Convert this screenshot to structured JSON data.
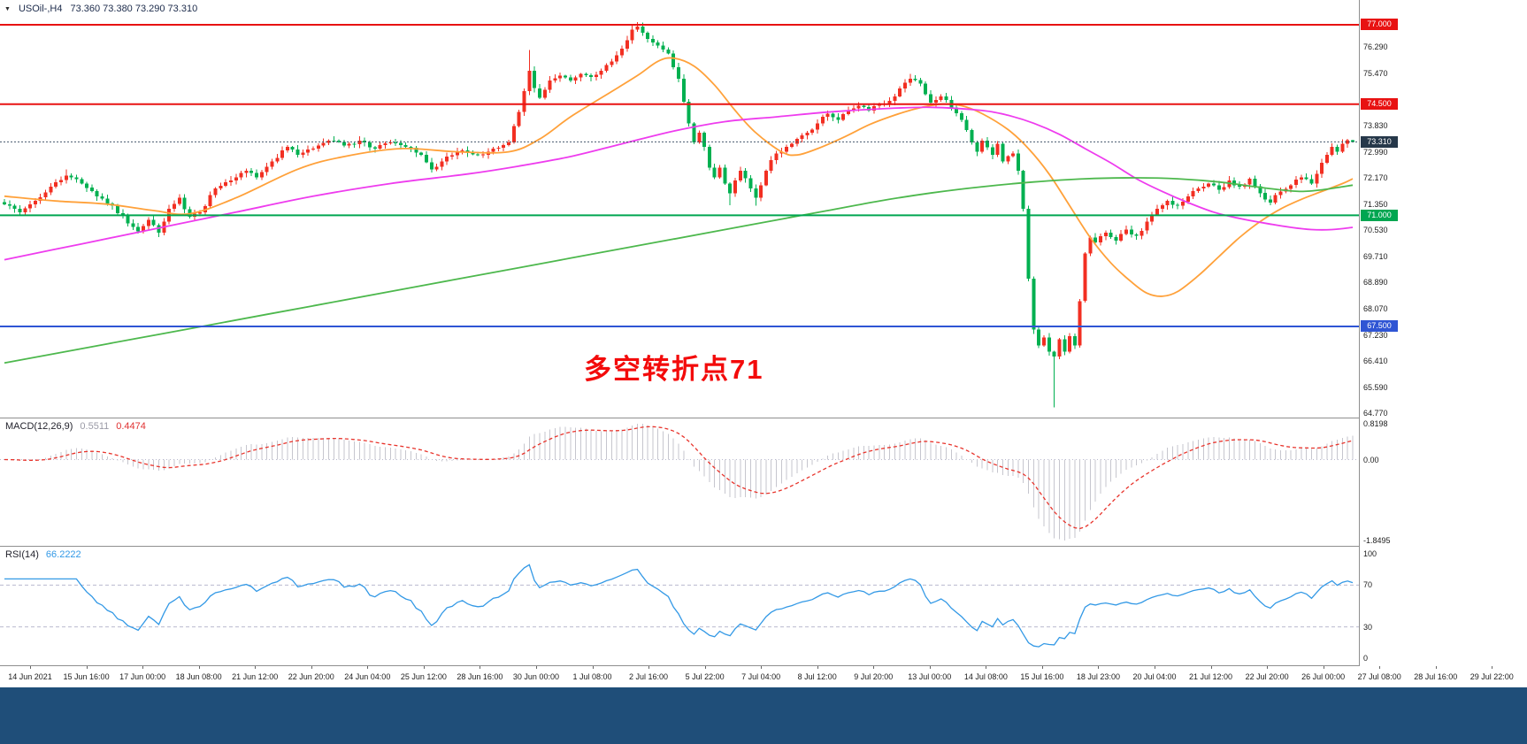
{
  "header": {
    "symbol": "USOil-,H4",
    "ohlc": "73.360 73.380 73.290 73.310"
  },
  "annotation": {
    "text": "多空转折点71"
  },
  "colors": {
    "candle_up": "#f22f22",
    "candle_down": "#00b050",
    "ma_fast": "#ffa13a",
    "ma_mid": "#ee3cee",
    "ma_slow": "#4db84d",
    "macd_hist": "#c6c6ce",
    "macd_signal": "#e8342c",
    "rsi_line": "#3399e6",
    "level_red": "#e81212",
    "level_green": "#00a651",
    "level_blue": "#2f55d4",
    "current_price_line": "#44566b",
    "badge_current": "#26384a",
    "bottom_bar": "#1f4e79",
    "annotation": "#f30b0b"
  },
  "price_axis": {
    "ticks": [
      "76.290",
      "75.470",
      "73.830",
      "72.990",
      "72.170",
      "71.350",
      "70.530",
      "69.710",
      "68.890",
      "68.070",
      "67.230",
      "66.410",
      "65.590",
      "64.770"
    ]
  },
  "hlines": [
    {
      "price": 77.0,
      "label": "77.000",
      "color": "#e81212"
    },
    {
      "price": 74.5,
      "label": "74.500",
      "color": "#e81212"
    },
    {
      "price": 71.0,
      "label": "71.000",
      "color": "#00a651"
    },
    {
      "price": 67.5,
      "label": "67.500",
      "color": "#2f55d4"
    }
  ],
  "current_price": {
    "value": 73.31,
    "label": "73.310"
  },
  "time_axis": {
    "labels": [
      "14 Jun 2021",
      "15 Jun 16:00",
      "17 Jun 00:00",
      "18 Jun 08:00",
      "21 Jun 12:00",
      "22 Jun 20:00",
      "24 Jun 04:00",
      "25 Jun 12:00",
      "28 Jun 16:00",
      "30 Jun 00:00",
      "1 Jul 08:00",
      "2 Jul 16:00",
      "5 Jul 22:00",
      "7 Jul 04:00",
      "8 Jul 12:00",
      "9 Jul 20:00",
      "13 Jul 00:00",
      "14 Jul 08:00",
      "15 Jul 16:00",
      "18 Jul 23:00",
      "20 Jul 04:00",
      "21 Jul 12:00",
      "22 Jul 20:00",
      "26 Jul 00:00",
      "27 Jul 08:00",
      "28 Jul 16:00",
      "29 Jul 22:00"
    ]
  },
  "macd_panel": {
    "label": "MACD(12,26,9)",
    "main_value": "0.5511",
    "signal_value": "0.4474",
    "axis": [
      0.8198,
      0.0,
      -1.8495
    ],
    "axis_labels": [
      "0.8198",
      "0.00",
      "-1.8495"
    ]
  },
  "rsi_panel": {
    "label": "RSI(14)",
    "value": "66.2222",
    "axis": [
      100,
      70,
      30,
      0
    ],
    "axis_labels": [
      "100",
      "70",
      "30",
      "0"
    ],
    "levels": [
      70,
      30
    ]
  },
  "chart_data": {
    "type": "candlestick",
    "symbol": "USOil-",
    "timeframe": "H4",
    "current": {
      "open": 73.36,
      "high": 73.38,
      "low": 73.29,
      "close": 73.31
    },
    "bars": 263,
    "ylim": [
      64.63,
      77.78
    ],
    "close_anchors": [
      [
        0,
        71.35
      ],
      [
        3,
        71.1
      ],
      [
        6,
        71.45
      ],
      [
        9,
        71.9
      ],
      [
        12,
        72.25
      ],
      [
        15,
        72.0
      ],
      [
        18,
        71.6
      ],
      [
        21,
        71.3
      ],
      [
        24,
        70.75
      ],
      [
        26,
        70.5
      ],
      [
        28,
        70.85
      ],
      [
        30,
        70.45
      ],
      [
        32,
        71.2
      ],
      [
        34,
        71.55
      ],
      [
        36,
        70.95
      ],
      [
        38,
        71.1
      ],
      [
        41,
        71.85
      ],
      [
        44,
        72.1
      ],
      [
        47,
        72.4
      ],
      [
        49,
        72.2
      ],
      [
        52,
        72.7
      ],
      [
        55,
        73.15
      ],
      [
        57,
        72.9
      ],
      [
        60,
        73.1
      ],
      [
        63,
        73.35
      ],
      [
        66,
        73.2
      ],
      [
        69,
        73.35
      ],
      [
        72,
        73.1
      ],
      [
        75,
        73.3
      ],
      [
        78,
        73.15
      ],
      [
        81,
        72.9
      ],
      [
        83,
        72.45
      ],
      [
        86,
        72.85
      ],
      [
        89,
        73.05
      ],
      [
        92,
        72.9
      ],
      [
        95,
        73.1
      ],
      [
        98,
        73.3
      ],
      [
        100,
        74.25
      ],
      [
        102,
        75.55
      ],
      [
        103,
        75.0
      ],
      [
        104,
        74.7
      ],
      [
        106,
        75.25
      ],
      [
        108,
        75.4
      ],
      [
        110,
        75.25
      ],
      [
        112,
        75.45
      ],
      [
        114,
        75.35
      ],
      [
        116,
        75.55
      ],
      [
        118,
        75.85
      ],
      [
        120,
        76.25
      ],
      [
        122,
        76.85
      ],
      [
        123,
        76.95
      ],
      [
        125,
        76.55
      ],
      [
        127,
        76.35
      ],
      [
        129,
        76.1
      ],
      [
        131,
        75.3
      ],
      [
        133,
        73.9
      ],
      [
        134,
        73.3
      ],
      [
        135,
        73.6
      ],
      [
        136,
        73.15
      ],
      [
        137,
        72.5
      ],
      [
        138,
        72.2
      ],
      [
        139,
        72.5
      ],
      [
        140,
        72.0
      ],
      [
        141,
        71.7
      ],
      [
        142,
        72.1
      ],
      [
        143,
        72.4
      ],
      [
        145,
        71.85
      ],
      [
        146,
        71.55
      ],
      [
        147,
        71.95
      ],
      [
        148,
        72.4
      ],
      [
        150,
        72.95
      ],
      [
        152,
        73.15
      ],
      [
        154,
        73.4
      ],
      [
        156,
        73.6
      ],
      [
        158,
        73.9
      ],
      [
        160,
        74.2
      ],
      [
        162,
        74.0
      ],
      [
        164,
        74.3
      ],
      [
        166,
        74.45
      ],
      [
        168,
        74.3
      ],
      [
        170,
        74.5
      ],
      [
        172,
        74.6
      ],
      [
        174,
        75.0
      ],
      [
        176,
        75.3
      ],
      [
        178,
        75.15
      ],
      [
        180,
        74.55
      ],
      [
        182,
        74.75
      ],
      [
        184,
        74.4
      ],
      [
        186,
        74.0
      ],
      [
        188,
        73.3
      ],
      [
        189,
        73.0
      ],
      [
        190,
        73.35
      ],
      [
        192,
        72.9
      ],
      [
        193,
        73.25
      ],
      [
        194,
        72.7
      ],
      [
        196,
        72.95
      ],
      [
        197,
        72.4
      ],
      [
        198,
        71.2
      ],
      [
        199,
        69.0
      ],
      [
        200,
        67.4
      ],
      [
        201,
        66.9
      ],
      [
        202,
        67.15
      ],
      [
        203,
        66.7
      ],
      [
        204,
        66.55
      ],
      [
        205,
        67.1
      ],
      [
        206,
        66.7
      ],
      [
        207,
        67.2
      ],
      [
        208,
        66.9
      ],
      [
        209,
        68.3
      ],
      [
        210,
        69.8
      ],
      [
        211,
        70.3
      ],
      [
        212,
        70.15
      ],
      [
        214,
        70.45
      ],
      [
        216,
        70.2
      ],
      [
        218,
        70.55
      ],
      [
        220,
        70.35
      ],
      [
        222,
        70.8
      ],
      [
        224,
        71.2
      ],
      [
        226,
        71.45
      ],
      [
        228,
        71.3
      ],
      [
        230,
        71.6
      ],
      [
        232,
        71.85
      ],
      [
        234,
        72.0
      ],
      [
        236,
        71.8
      ],
      [
        238,
        72.1
      ],
      [
        240,
        71.9
      ],
      [
        242,
        72.15
      ],
      [
        244,
        71.7
      ],
      [
        246,
        71.4
      ],
      [
        248,
        71.75
      ],
      [
        250,
        71.95
      ],
      [
        252,
        72.2
      ],
      [
        254,
        72.0
      ],
      [
        255,
        72.3
      ],
      [
        256,
        72.65
      ],
      [
        257,
        72.9
      ],
      [
        258,
        73.15
      ],
      [
        259,
        73.0
      ],
      [
        260,
        73.25
      ],
      [
        261,
        73.36
      ],
      [
        262,
        73.31
      ]
    ],
    "wick_overrides": [
      {
        "i": 12,
        "h": 72.45
      },
      {
        "i": 102,
        "h": 76.2
      },
      {
        "i": 122,
        "h": 77.02
      },
      {
        "i": 123,
        "h": 77.08
      },
      {
        "i": 141,
        "l": 71.32
      },
      {
        "i": 146,
        "l": 71.3
      },
      {
        "i": 176,
        "h": 75.45
      },
      {
        "i": 204,
        "l": 64.95
      },
      {
        "i": 262,
        "h": 73.38,
        "l": 73.29
      }
    ],
    "ma_lines": [
      {
        "name": "ma-fast-orange",
        "color": "#ffa13a",
        "points": [
          [
            0,
            71.6
          ],
          [
            10,
            71.45
          ],
          [
            20,
            71.35
          ],
          [
            29,
            71.15
          ],
          [
            36,
            71.05
          ],
          [
            45,
            71.55
          ],
          [
            57,
            72.45
          ],
          [
            66,
            72.85
          ],
          [
            77,
            73.1
          ],
          [
            88,
            73.0
          ],
          [
            98,
            73.0
          ],
          [
            104,
            73.4
          ],
          [
            110,
            74.1
          ],
          [
            117,
            74.8
          ],
          [
            123,
            75.4
          ],
          [
            127,
            75.85
          ],
          [
            130,
            75.95
          ],
          [
            134,
            75.7
          ],
          [
            138,
            75.1
          ],
          [
            142,
            74.3
          ],
          [
            146,
            73.6
          ],
          [
            151,
            73.0
          ],
          [
            154,
            72.9
          ],
          [
            158,
            73.1
          ],
          [
            163,
            73.45
          ],
          [
            168,
            73.85
          ],
          [
            172,
            74.1
          ],
          [
            177,
            74.35
          ],
          [
            182,
            74.5
          ],
          [
            186,
            74.45
          ],
          [
            190,
            74.2
          ],
          [
            195,
            73.7
          ],
          [
            199,
            73.1
          ],
          [
            203,
            72.3
          ],
          [
            207,
            71.3
          ],
          [
            211,
            70.3
          ],
          [
            215,
            69.5
          ],
          [
            219,
            68.9
          ],
          [
            222,
            68.55
          ],
          [
            225,
            68.45
          ],
          [
            228,
            68.6
          ],
          [
            232,
            69.1
          ],
          [
            236,
            69.7
          ],
          [
            240,
            70.3
          ],
          [
            244,
            70.8
          ],
          [
            248,
            71.2
          ],
          [
            252,
            71.5
          ],
          [
            256,
            71.75
          ],
          [
            260,
            72.0
          ],
          [
            262,
            72.15
          ]
        ]
      },
      {
        "name": "ma-mid-magenta",
        "color": "#ee3cee",
        "points": [
          [
            0,
            69.6
          ],
          [
            15,
            70.1
          ],
          [
            30,
            70.6
          ],
          [
            45,
            71.1
          ],
          [
            60,
            71.6
          ],
          [
            75,
            72.0
          ],
          [
            90,
            72.3
          ],
          [
            100,
            72.55
          ],
          [
            110,
            72.85
          ],
          [
            120,
            73.25
          ],
          [
            130,
            73.65
          ],
          [
            140,
            73.95
          ],
          [
            150,
            74.1
          ],
          [
            160,
            74.25
          ],
          [
            170,
            74.35
          ],
          [
            180,
            74.4
          ],
          [
            190,
            74.3
          ],
          [
            195,
            74.15
          ],
          [
            200,
            73.9
          ],
          [
            205,
            73.55
          ],
          [
            210,
            73.1
          ],
          [
            215,
            72.65
          ],
          [
            220,
            72.15
          ],
          [
            225,
            71.75
          ],
          [
            230,
            71.4
          ],
          [
            235,
            71.1
          ],
          [
            240,
            70.9
          ],
          [
            245,
            70.75
          ],
          [
            250,
            70.62
          ],
          [
            254,
            70.55
          ],
          [
            258,
            70.55
          ],
          [
            262,
            70.62
          ]
        ]
      },
      {
        "name": "ma-slow-green",
        "color": "#4db84d",
        "points": [
          [
            0,
            66.35
          ],
          [
            20,
            66.95
          ],
          [
            40,
            67.55
          ],
          [
            60,
            68.15
          ],
          [
            80,
            68.75
          ],
          [
            100,
            69.35
          ],
          [
            110,
            69.65
          ],
          [
            120,
            69.95
          ],
          [
            130,
            70.25
          ],
          [
            140,
            70.55
          ],
          [
            150,
            70.85
          ],
          [
            160,
            71.15
          ],
          [
            170,
            71.45
          ],
          [
            180,
            71.7
          ],
          [
            190,
            71.9
          ],
          [
            200,
            72.05
          ],
          [
            210,
            72.15
          ],
          [
            220,
            72.18
          ],
          [
            228,
            72.15
          ],
          [
            236,
            72.05
          ],
          [
            242,
            71.92
          ],
          [
            248,
            71.8
          ],
          [
            252,
            71.75
          ],
          [
            256,
            71.8
          ],
          [
            260,
            71.9
          ],
          [
            262,
            71.95
          ]
        ]
      }
    ],
    "indicators": {
      "macd": {
        "fast": 12,
        "slow": 26,
        "signal": 9
      },
      "rsi": {
        "period": 14
      }
    }
  }
}
